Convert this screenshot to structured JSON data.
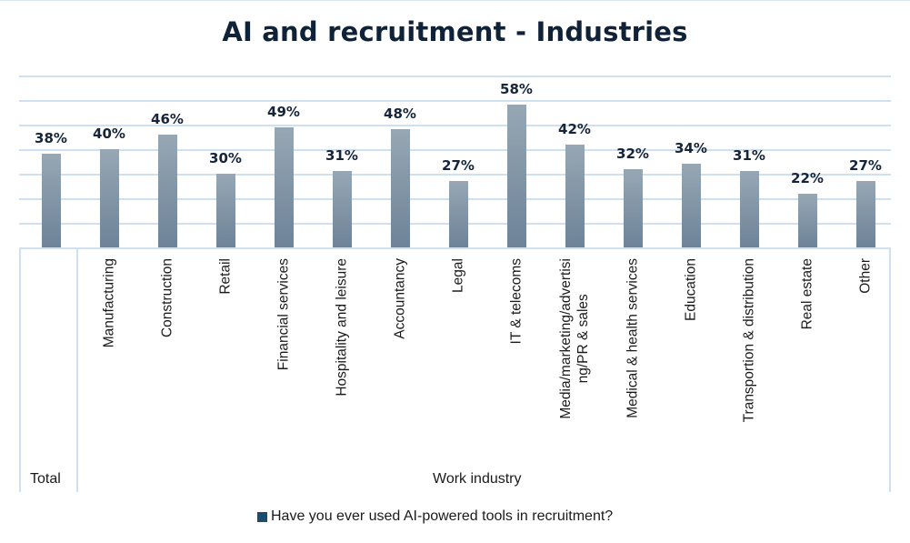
{
  "chart_data": {
    "type": "bar",
    "title": "AI and recruitment - Industries",
    "xlabel": "Work industry",
    "ylabel": "",
    "ylim": [
      0,
      70
    ],
    "grid": true,
    "gridline_count": 7,
    "legend_position": "bottom",
    "categories": [
      "Total",
      "Manufacturing",
      "Construction",
      "Retail",
      "Financial services",
      "Hospitality and leisure",
      "Accountancy",
      "Legal",
      "IT & telecoms",
      "Media/marketing/advertising/PR & sales",
      "Medical & health services",
      "Education",
      "Transportion & distribution",
      "Real estate",
      "Other"
    ],
    "category_groups": [
      {
        "label": "Total",
        "categories": [
          "Total"
        ]
      },
      {
        "label": "Work industry",
        "categories": [
          "Manufacturing",
          "Construction",
          "Retail",
          "Financial services",
          "Hospitality and leisure",
          "Accountancy",
          "Legal",
          "IT & telecoms",
          "Media/marketing/advertising/PR & sales",
          "Medical & health services",
          "Education",
          "Transportion & distribution",
          "Real estate",
          "Other"
        ]
      }
    ],
    "series": [
      {
        "name": "Have you ever used AI-powered tools in recruitment?",
        "values": [
          38,
          40,
          46,
          30,
          49,
          31,
          48,
          27,
          58,
          42,
          32,
          34,
          31,
          22,
          27
        ],
        "color": "#1b4d72"
      }
    ],
    "data_labels": [
      "38%",
      "40%",
      "46%",
      "30%",
      "49%",
      "31%",
      "48%",
      "27%",
      "58%",
      "42%",
      "32%",
      "34%",
      "31%",
      "22%",
      "27%"
    ]
  },
  "title": "AI and recruitment - Industries",
  "axis": {
    "total_label": "Total",
    "group_label": "Work industry",
    "category_lines": [
      [
        "Total"
      ],
      [
        "Manufacturing"
      ],
      [
        "Construction"
      ],
      [
        "Retail"
      ],
      [
        "Financial services"
      ],
      [
        "Hospitality and leisure"
      ],
      [
        "Accountancy"
      ],
      [
        "Legal"
      ],
      [
        "IT & telecoms"
      ],
      [
        "Media/marketing/advertisi",
        "ng/PR & sales"
      ],
      [
        "Medical & health services"
      ],
      [
        "Education"
      ],
      [
        "Transportion & distribution"
      ],
      [
        "Real estate"
      ],
      [
        "Other"
      ]
    ]
  },
  "legend": {
    "label": "Have you ever used AI-powered tools in recruitment?",
    "color": "#1b4d72"
  }
}
